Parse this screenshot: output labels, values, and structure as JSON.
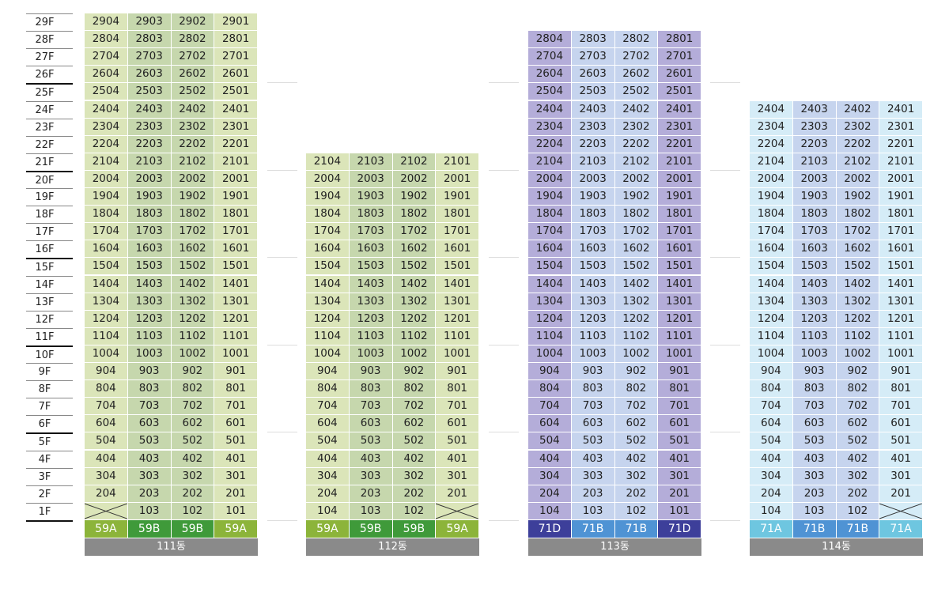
{
  "floors": [
    "29F",
    "28F",
    "27F",
    "26F",
    "25F",
    "24F",
    "23F",
    "22F",
    "21F",
    "20F",
    "19F",
    "18F",
    "17F",
    "16F",
    "15F",
    "14F",
    "13F",
    "12F",
    "11F",
    "10F",
    "9F",
    "8F",
    "7F",
    "6F",
    "5F",
    "4F",
    "3F",
    "2F",
    "1F"
  ],
  "lines": [
    "04",
    "03",
    "02",
    "01"
  ],
  "buildings": [
    {
      "name": "111동",
      "top_floor": 29,
      "types": [
        "59A",
        "59B",
        "59B",
        "59A"
      ],
      "empty_1f": [
        "104"
      ],
      "colors": {
        "outer": "#dbe5b9",
        "inner": "#c6d7ad"
      },
      "type_colors": [
        "#8cb43a",
        "#3f9a3a",
        "#3f9a3a",
        "#8cb43a"
      ]
    },
    {
      "name": "112동",
      "top_floor": 21,
      "types": [
        "59A",
        "59B",
        "59B",
        "59A"
      ],
      "empty_1f": [
        "101"
      ],
      "colors": {
        "outer": "#dbe5b9",
        "inner": "#c6d7ad"
      },
      "type_colors": [
        "#8cb43a",
        "#3f9a3a",
        "#3f9a3a",
        "#8cb43a"
      ]
    },
    {
      "name": "113동",
      "top_floor": 28,
      "types": [
        "71D",
        "71B",
        "71B",
        "71D"
      ],
      "empty_1f": [],
      "colors": {
        "outer": "#b4add9",
        "inner": "#c6d4ee"
      },
      "type_colors": [
        "#3d3f9a",
        "#4f93d4",
        "#4f93d4",
        "#3d3f9a"
      ]
    },
    {
      "name": "114동",
      "top_floor": 24,
      "types": [
        "71A",
        "71B",
        "71B",
        "71A"
      ],
      "empty_1f": [
        "101"
      ],
      "colors": {
        "outer": "#d5ecf7",
        "inner": "#c6d4ee"
      },
      "type_colors": [
        "#6ec6e0",
        "#4f93d4",
        "#4f93d4",
        "#6ec6e0"
      ]
    }
  ]
}
